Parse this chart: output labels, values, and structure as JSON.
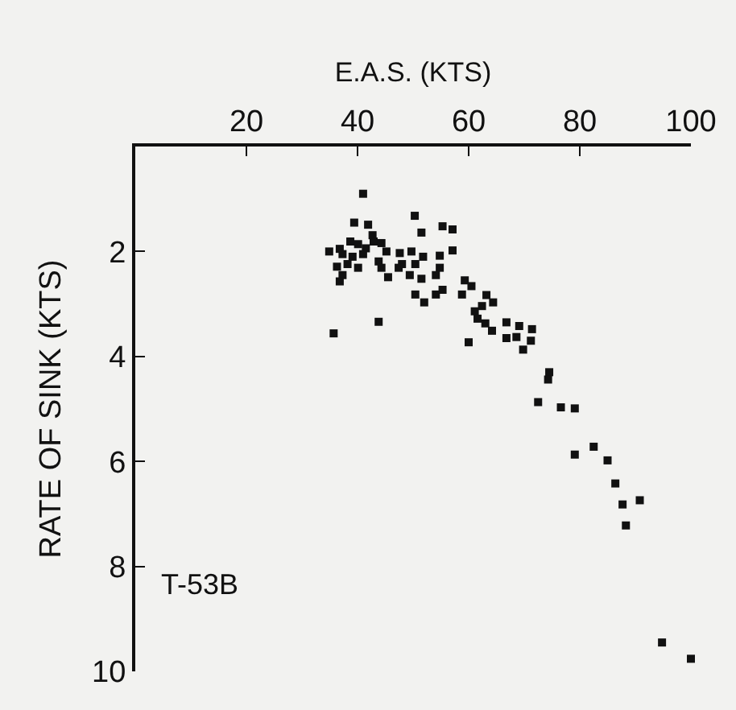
{
  "chart_data": {
    "type": "scatter",
    "xlabel": "E.A.S. (KTS)",
    "ylabel": "RATE OF SINK (KTS)",
    "annotations": [
      "T-53B"
    ],
    "xlim": [
      0,
      100
    ],
    "xticks": [
      20,
      40,
      60,
      80,
      100
    ],
    "ylim": [
      10,
      0
    ],
    "yticks": [
      2,
      4,
      6,
      8,
      10
    ],
    "grid": false,
    "marker": "square",
    "series": [
      {
        "color": "#111111",
        "x": [
          41.0,
          39.4,
          41.9,
          50.3,
          55.3,
          57.1,
          51.5,
          42.7,
          34.9,
          36.8,
          38.7,
          40.1,
          41.5,
          42.9,
          44.3,
          41.0,
          39.1,
          37.3,
          45.2,
          36.3,
          38.2,
          40.1,
          43.8,
          44.3,
          37.3,
          36.8,
          45.5,
          47.6,
          49.7,
          48.0,
          47.4,
          50.4,
          51.8,
          49.4,
          51.5,
          54.8,
          57.1,
          54.8,
          54.1,
          55.3,
          54.1,
          50.4,
          52.0,
          59.3,
          60.5,
          58.8,
          63.2,
          62.4,
          64.4,
          61.1,
          61.6,
          63.0,
          64.2,
          66.8,
          69.1,
          71.4,
          66.8,
          68.6,
          71.2,
          69.8,
          60.0,
          43.8,
          35.7,
          74.5,
          74.3,
          72.5,
          76.6,
          79.1,
          82.5,
          79.1,
          85.0,
          86.4,
          90.8,
          87.7,
          88.3,
          94.8,
          100
        ],
        "values": [
          0.9,
          1.45,
          1.49,
          1.32,
          1.52,
          1.58,
          1.64,
          1.69,
          2.0,
          1.95,
          1.81,
          1.86,
          1.94,
          1.81,
          1.84,
          2.05,
          2.1,
          2.05,
          2.0,
          2.29,
          2.24,
          2.31,
          2.19,
          2.31,
          2.45,
          2.57,
          2.49,
          2.03,
          2.0,
          2.24,
          2.31,
          2.24,
          2.1,
          2.45,
          2.52,
          2.08,
          1.98,
          2.31,
          2.45,
          2.73,
          2.82,
          2.82,
          2.97,
          2.55,
          2.66,
          2.82,
          2.83,
          3.04,
          2.97,
          3.14,
          3.28,
          3.37,
          3.51,
          3.35,
          3.42,
          3.48,
          3.65,
          3.63,
          3.7,
          3.87,
          3.73,
          3.34,
          3.56,
          4.3,
          4.44,
          4.87,
          4.97,
          4.99,
          5.72,
          5.87,
          5.98,
          6.42,
          6.74,
          6.82,
          7.22,
          9.45,
          9.76
        ]
      }
    ]
  }
}
